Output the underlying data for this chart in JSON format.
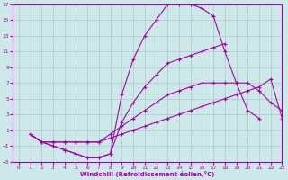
{
  "xlabel": "Windchill (Refroidissement éolien,°C)",
  "xlim": [
    -0.5,
    23
  ],
  "ylim": [
    -3,
    17
  ],
  "xticks": [
    0,
    1,
    2,
    3,
    4,
    5,
    6,
    7,
    8,
    9,
    10,
    11,
    12,
    13,
    14,
    15,
    16,
    17,
    18,
    19,
    20,
    21,
    22,
    23
  ],
  "yticks": [
    -3,
    -1,
    1,
    3,
    5,
    7,
    9,
    11,
    13,
    15,
    17
  ],
  "bg_color": "#cce8e8",
  "grid_color": "#aacccc",
  "line_color": "#aa00aa",
  "lines": [
    {
      "x": [
        1,
        2,
        3,
        4,
        5,
        6,
        7,
        8,
        9,
        10,
        11,
        12,
        13,
        14,
        15,
        16,
        17,
        18,
        19,
        20,
        21,
        22,
        23
      ],
      "y": [
        0.5,
        -0.5,
        -1.0,
        -1.5,
        -2.0,
        -2.5,
        -2.5,
        -2.0,
        5.5,
        10.0,
        13.0,
        15.0,
        17.0,
        17.0,
        17.0,
        16.5,
        15.5,
        11.0,
        7.0,
        3.5,
        2.5,
        null,
        null
      ]
    },
    {
      "x": [
        1,
        2,
        3,
        4,
        5,
        6,
        7,
        8,
        9,
        10,
        11,
        12,
        13,
        14,
        15,
        16,
        17,
        18,
        19,
        20,
        21,
        22,
        23
      ],
      "y": [
        0.5,
        -0.5,
        -1.0,
        -1.5,
        -2.0,
        -2.5,
        -2.5,
        -2.0,
        2.0,
        4.5,
        6.5,
        8.0,
        9.5,
        10.0,
        10.5,
        11.0,
        11.5,
        12.0,
        null,
        null,
        null,
        null,
        null
      ]
    },
    {
      "x": [
        1,
        2,
        3,
        4,
        5,
        6,
        7,
        8,
        9,
        10,
        11,
        12,
        13,
        14,
        15,
        16,
        17,
        18,
        19,
        20,
        21,
        22,
        23
      ],
      "y": [
        0.5,
        -0.5,
        -0.5,
        -0.5,
        -0.5,
        -0.5,
        -0.5,
        0.5,
        1.5,
        2.5,
        3.5,
        4.5,
        5.5,
        6.0,
        6.5,
        7.0,
        7.0,
        7.0,
        7.0,
        7.0,
        6.0,
        4.5,
        3.5
      ]
    },
    {
      "x": [
        1,
        2,
        3,
        4,
        5,
        6,
        7,
        8,
        9,
        10,
        11,
        12,
        13,
        14,
        15,
        16,
        17,
        18,
        19,
        20,
        21,
        22,
        23
      ],
      "y": [
        0.5,
        -0.5,
        -0.5,
        -0.5,
        -0.5,
        -0.5,
        -0.5,
        0.0,
        0.5,
        1.0,
        1.5,
        2.0,
        2.5,
        3.0,
        3.5,
        4.0,
        4.5,
        5.0,
        5.5,
        6.0,
        6.5,
        7.5,
        2.5
      ]
    }
  ]
}
